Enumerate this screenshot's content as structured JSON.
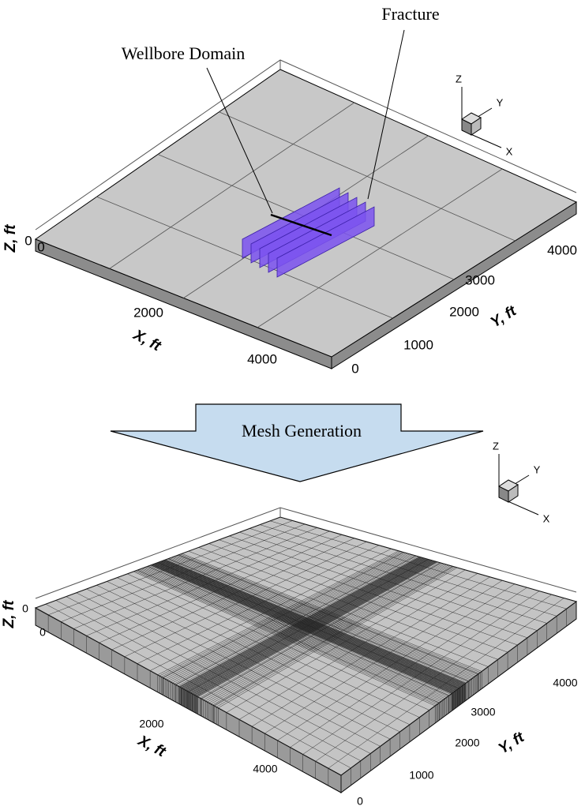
{
  "annotations": {
    "fracture": "Fracture",
    "wellbore": "Wellbore Domain"
  },
  "arrow_label": "Mesh Generation",
  "top_plot": {
    "z_label": "Z, ft",
    "z_ticks": [
      "0"
    ],
    "x_label": "X, ft",
    "x_ticks": [
      "0",
      "2000",
      "4000"
    ],
    "y_label": "Y, ft",
    "y_ticks": [
      "0",
      "1000",
      "2000",
      "3000",
      "4000"
    ],
    "triad": [
      "Z",
      "Y",
      "X"
    ]
  },
  "bottom_plot": {
    "z_label": "Z, ft",
    "z_ticks": [
      "0"
    ],
    "x_label": "X, ft",
    "x_ticks": [
      "0",
      "2000",
      "4000"
    ],
    "y_label": "Y, ft",
    "y_ticks": [
      "0",
      "1000",
      "2000",
      "3000",
      "4000"
    ],
    "triad": [
      "Z",
      "Y",
      "X"
    ]
  }
}
